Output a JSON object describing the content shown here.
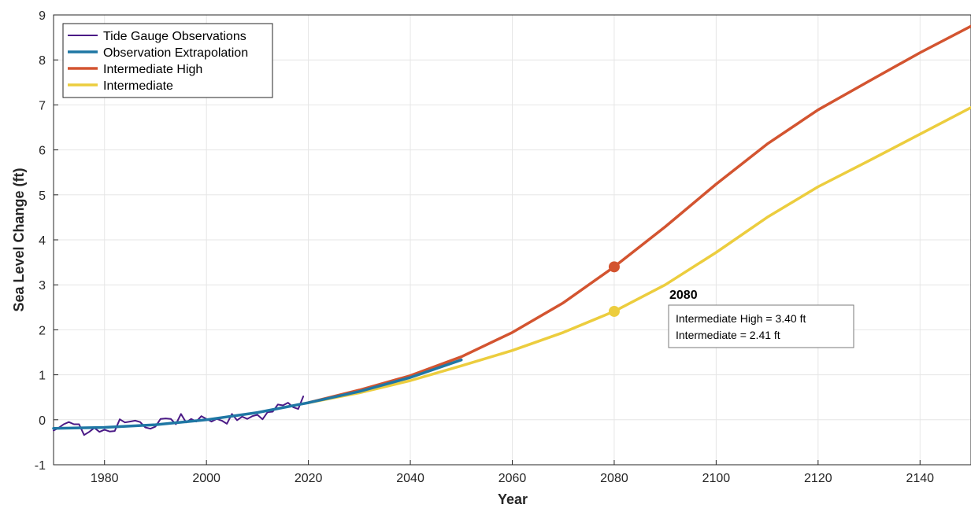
{
  "chart_data": {
    "type": "line",
    "title": "",
    "xlabel": "Year",
    "ylabel": "Sea Level Change (ft)",
    "xlim": [
      1970,
      2150
    ],
    "ylim": [
      -1,
      9
    ],
    "x_ticks": [
      1980,
      2000,
      2020,
      2040,
      2060,
      2080,
      2100,
      2120,
      2140
    ],
    "y_ticks": [
      -1,
      0,
      1,
      2,
      3,
      4,
      5,
      6,
      7,
      8,
      9
    ],
    "grid": true,
    "legend_position": "top-left",
    "series": [
      {
        "name": "Tide Gauge Observations",
        "color": "#4b1a86",
        "x": [
          1970,
          1971,
          1972,
          1973,
          1974,
          1975,
          1976,
          1977,
          1978,
          1979,
          1980,
          1981,
          1982,
          1983,
          1984,
          1985,
          1986,
          1987,
          1988,
          1989,
          1990,
          1991,
          1992,
          1993,
          1994,
          1995,
          1996,
          1997,
          1998,
          1999,
          2000,
          2001,
          2002,
          2003,
          2004,
          2005,
          2006,
          2007,
          2008,
          2009,
          2010,
          2011,
          2012,
          2013,
          2014,
          2015,
          2016,
          2017,
          2018,
          2019
        ],
        "y": [
          -0.24,
          -0.18,
          -0.1,
          -0.05,
          -0.1,
          -0.1,
          -0.34,
          -0.27,
          -0.18,
          -0.27,
          -0.22,
          -0.26,
          -0.25,
          0.01,
          -0.06,
          -0.04,
          -0.02,
          -0.05,
          -0.17,
          -0.2,
          -0.15,
          0.02,
          0.03,
          0.02,
          -0.1,
          0.13,
          -0.06,
          0.02,
          -0.04,
          0.08,
          0.02,
          -0.04,
          0.02,
          -0.02,
          -0.09,
          0.13,
          -0.01,
          0.07,
          0.02,
          0.08,
          0.11,
          0.01,
          0.17,
          0.18,
          0.34,
          0.32,
          0.38,
          0.28,
          0.24,
          0.52
        ]
      },
      {
        "name": "Observation Extrapolation",
        "color": "#1f77a4",
        "x": [
          1970,
          1980,
          1990,
          2000,
          2010,
          2020,
          2030,
          2040,
          2050
        ],
        "y": [
          -0.19,
          -0.17,
          -0.11,
          0.0,
          0.16,
          0.38,
          0.63,
          0.94,
          1.33
        ]
      },
      {
        "name": "Intermediate High",
        "color": "#d35430",
        "x": [
          2020,
          2030,
          2040,
          2050,
          2060,
          2070,
          2080,
          2090,
          2100,
          2110,
          2120,
          2130,
          2140,
          2150
        ],
        "y": [
          0.38,
          0.66,
          0.98,
          1.4,
          1.94,
          2.6,
          3.4,
          4.29,
          5.24,
          6.13,
          6.89,
          7.53,
          8.16,
          8.75
        ]
      },
      {
        "name": "Intermediate",
        "color": "#eccd3e",
        "x": [
          2020,
          2030,
          2040,
          2050,
          2060,
          2070,
          2080,
          2090,
          2100,
          2110,
          2120,
          2130,
          2140,
          2150
        ],
        "y": [
          0.38,
          0.6,
          0.87,
          1.2,
          1.54,
          1.94,
          2.41,
          3.0,
          3.72,
          4.5,
          5.18,
          5.76,
          6.35,
          6.94
        ]
      }
    ],
    "highlight_points": [
      {
        "x": 2080,
        "y": 3.4,
        "color": "#d35430"
      },
      {
        "x": 2080,
        "y": 2.41,
        "color": "#eccd3e"
      }
    ],
    "annotation": {
      "heading": "2080",
      "lines": [
        "Intermediate High = 3.40 ft",
        "Intermediate = 2.41 ft"
      ]
    }
  }
}
